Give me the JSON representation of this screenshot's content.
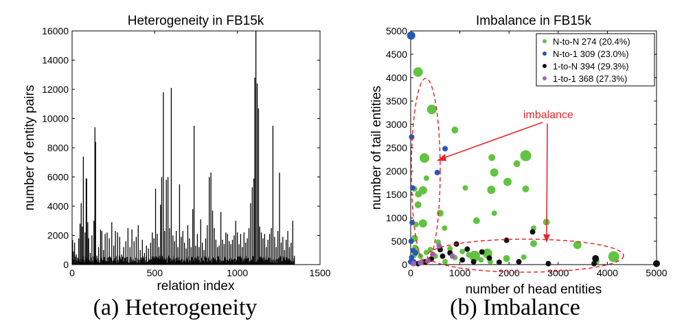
{
  "chart_data": [
    {
      "type": "bar",
      "title": "Heterogeneity in FB15k",
      "xlabel": "relation index",
      "ylabel": "number of entity pairs",
      "xlim": [
        0,
        1500
      ],
      "ylim": [
        0,
        16000
      ],
      "xticks": [
        "0",
        "500",
        "1000",
        "1500"
      ],
      "yticks": [
        "0",
        "2000",
        "4000",
        "6000",
        "8000",
        "10000",
        "12000",
        "14000",
        "16000"
      ],
      "caption": "(a) Heterogeneity",
      "spikes": [
        [
          3,
          1700
        ],
        [
          8,
          900
        ],
        [
          15,
          1500
        ],
        [
          25,
          700
        ],
        [
          40,
          1800
        ],
        [
          48,
          2800
        ],
        [
          55,
          4200
        ],
        [
          62,
          2600
        ],
        [
          68,
          7400
        ],
        [
          78,
          2200
        ],
        [
          85,
          5900
        ],
        [
          88,
          5900
        ],
        [
          95,
          2900
        ],
        [
          100,
          1800
        ],
        [
          110,
          800
        ],
        [
          120,
          2000
        ],
        [
          132,
          3000
        ],
        [
          138,
          9400
        ],
        [
          142,
          8400
        ],
        [
          150,
          600
        ],
        [
          160,
          1200
        ],
        [
          172,
          2400
        ],
        [
          180,
          2300
        ],
        [
          190,
          1000
        ],
        [
          200,
          2100
        ],
        [
          212,
          2200
        ],
        [
          225,
          1800
        ],
        [
          240,
          2900
        ],
        [
          252,
          1300
        ],
        [
          262,
          2300
        ],
        [
          275,
          2200
        ],
        [
          288,
          1900
        ],
        [
          300,
          700
        ],
        [
          312,
          1200
        ],
        [
          325,
          1600
        ],
        [
          338,
          2500
        ],
        [
          350,
          1200
        ],
        [
          362,
          2400
        ],
        [
          375,
          1600
        ],
        [
          388,
          1900
        ],
        [
          400,
          2700
        ],
        [
          412,
          1000
        ],
        [
          425,
          1700
        ],
        [
          438,
          800
        ],
        [
          450,
          1300
        ],
        [
          462,
          1100
        ],
        [
          475,
          1500
        ],
        [
          485,
          2200
        ],
        [
          495,
          1800
        ],
        [
          505,
          5200
        ],
        [
          515,
          2100
        ],
        [
          525,
          1200
        ],
        [
          535,
          4100
        ],
        [
          542,
          6000
        ],
        [
          552,
          11800
        ],
        [
          560,
          2300
        ],
        [
          570,
          5800
        ],
        [
          580,
          6000
        ],
        [
          590,
          2500
        ],
        [
          600,
          12100
        ],
        [
          610,
          2000
        ],
        [
          620,
          1600
        ],
        [
          630,
          2300
        ],
        [
          640,
          1200
        ],
        [
          650,
          5500
        ],
        [
          660,
          1900
        ],
        [
          670,
          2300
        ],
        [
          680,
          1500
        ],
        [
          690,
          1100
        ],
        [
          700,
          2700
        ],
        [
          710,
          1800
        ],
        [
          720,
          1200
        ],
        [
          730,
          3800
        ],
        [
          738,
          9500
        ],
        [
          748,
          1300
        ],
        [
          758,
          2100
        ],
        [
          768,
          1200
        ],
        [
          778,
          3100
        ],
        [
          788,
          1500
        ],
        [
          798,
          1000
        ],
        [
          808,
          1800
        ],
        [
          818,
          2700
        ],
        [
          830,
          6000
        ],
        [
          840,
          6300
        ],
        [
          850,
          3700
        ],
        [
          860,
          2500
        ],
        [
          870,
          1700
        ],
        [
          880,
          1200
        ],
        [
          890,
          1300
        ],
        [
          900,
          3600
        ],
        [
          910,
          1700
        ],
        [
          920,
          1400
        ],
        [
          930,
          2200
        ],
        [
          940,
          2100
        ],
        [
          950,
          1600
        ],
        [
          960,
          1400
        ],
        [
          970,
          1700
        ],
        [
          980,
          2000
        ],
        [
          990,
          3000
        ],
        [
          1000,
          2200
        ],
        [
          1010,
          1400
        ],
        [
          1020,
          2100
        ],
        [
          1030,
          1200
        ],
        [
          1040,
          2200
        ],
        [
          1050,
          1500
        ],
        [
          1060,
          1800
        ],
        [
          1070,
          2500
        ],
        [
          1080,
          4200
        ],
        [
          1090,
          5300
        ],
        [
          1100,
          5900
        ],
        [
          1105,
          12800
        ],
        [
          1112,
          16000
        ],
        [
          1120,
          12400
        ],
        [
          1128,
          10700
        ],
        [
          1135,
          2600
        ],
        [
          1145,
          2200
        ],
        [
          1155,
          1800
        ],
        [
          1165,
          2100
        ],
        [
          1175,
          1200
        ],
        [
          1185,
          1700
        ],
        [
          1195,
          2100
        ],
        [
          1205,
          2500
        ],
        [
          1215,
          9500
        ],
        [
          1225,
          1900
        ],
        [
          1235,
          1200
        ],
        [
          1245,
          2300
        ],
        [
          1255,
          6300
        ],
        [
          1265,
          1500
        ],
        [
          1275,
          1900
        ],
        [
          1285,
          1000
        ],
        [
          1295,
          1700
        ],
        [
          1305,
          2300
        ],
        [
          1315,
          1200
        ],
        [
          1325,
          1500
        ],
        [
          1335,
          3000
        ],
        [
          1345,
          600
        ]
      ]
    },
    {
      "type": "scatter",
      "title": "Imbalance in FB15k",
      "xlabel": "number of head entities",
      "ylabel": "number of tail entities",
      "xlim": [
        0,
        5000
      ],
      "ylim": [
        0,
        5000
      ],
      "xticks": [
        "0",
        "1000",
        "2000",
        "3000",
        "4000",
        "5000"
      ],
      "yticks": [
        "0",
        "500",
        "1000",
        "1500",
        "2000",
        "2500",
        "3000",
        "3500",
        "4000",
        "4500",
        "5000"
      ],
      "caption": "(b) Imbalance",
      "annotation": "imbalance",
      "series": [
        {
          "name": "N-to-N 274 (20.4%)",
          "color": "#62c341",
          "points": [
            [
              150,
              4120,
              7
            ],
            [
              430,
              3320,
              7
            ],
            [
              900,
              2880,
              5
            ],
            [
              280,
              2280,
              7
            ],
            [
              160,
              1510,
              5
            ],
            [
              80,
              1620,
              4
            ],
            [
              320,
              1850,
              4
            ],
            [
              150,
              1280,
              5
            ],
            [
              250,
              1590,
              6
            ],
            [
              250,
              880,
              6
            ],
            [
              1110,
              1640,
              4
            ],
            [
              1650,
              2290,
              5
            ],
            [
              1700,
              1970,
              6
            ],
            [
              1640,
              1600,
              6
            ],
            [
              1970,
              1770,
              6
            ],
            [
              2340,
              2330,
              8
            ],
            [
              2160,
              2160,
              5
            ],
            [
              2340,
              1620,
              5
            ],
            [
              2500,
              780,
              4
            ],
            [
              2760,
              910,
              5
            ],
            [
              1700,
              1100,
              4
            ],
            [
              1340,
              940,
              5
            ],
            [
              3390,
              420,
              6
            ],
            [
              2500,
              450,
              5
            ],
            [
              1300,
              180,
              8
            ],
            [
              1560,
              240,
              7
            ],
            [
              1950,
              130,
              5
            ],
            [
              2300,
              160,
              4
            ],
            [
              4130,
              170,
              8
            ],
            [
              3770,
              70,
              5
            ],
            [
              80,
              560,
              5
            ],
            [
              90,
              370,
              4
            ],
            [
              130,
              280,
              4
            ],
            [
              200,
              180,
              4
            ],
            [
              320,
              260,
              4
            ],
            [
              600,
              1100,
              5
            ],
            [
              690,
              780,
              4
            ],
            [
              800,
              340,
              4
            ],
            [
              1050,
              280,
              4
            ],
            [
              1180,
              210,
              4
            ],
            [
              1430,
              100,
              4
            ],
            [
              1620,
              60,
              4
            ],
            [
              560,
              480,
              4
            ],
            [
              400,
              320,
              4
            ],
            [
              900,
              150,
              4
            ],
            [
              700,
              60,
              4
            ],
            [
              240,
              70,
              4
            ],
            [
              110,
              860,
              4
            ],
            [
              70,
              200,
              4
            ],
            [
              500,
              180,
              4
            ]
          ]
        },
        {
          "name": "N-to-1 309 (23.0%)",
          "color": "#2657b5",
          "points": [
            [
              10,
              4900,
              6
            ],
            [
              20,
              2730,
              4
            ],
            [
              700,
              2480,
              4
            ],
            [
              540,
              1970,
              4
            ],
            [
              40,
              1640,
              4
            ],
            [
              30,
              900,
              4
            ],
            [
              10,
              500,
              4
            ],
            [
              50,
              300,
              4
            ],
            [
              20,
              150,
              4
            ],
            [
              100,
              250,
              4
            ],
            [
              0,
              60,
              4
            ],
            [
              60,
              60,
              4
            ]
          ]
        },
        {
          "name": "1-to-N 394 (29.3%)",
          "color": "#111111",
          "points": [
            [
              2480,
              700,
              4
            ],
            [
              1950,
              520,
              4
            ],
            [
              1450,
              270,
              4
            ],
            [
              1150,
              330,
              4
            ],
            [
              800,
              250,
              4
            ],
            [
              650,
              180,
              4
            ],
            [
              420,
              120,
              4
            ],
            [
              300,
              60,
              4
            ],
            [
              1050,
              100,
              4
            ],
            [
              2800,
              20,
              4
            ],
            [
              3760,
              130,
              5
            ],
            [
              3730,
              20,
              4
            ],
            [
              5000,
              20,
              5
            ],
            [
              2200,
              60,
              4
            ],
            [
              1600,
              140,
              4
            ],
            [
              930,
              440,
              4
            ],
            [
              600,
              320,
              4
            ],
            [
              1280,
              60,
              4
            ],
            [
              1800,
              50,
              4
            ],
            [
              150,
              20,
              4
            ]
          ]
        },
        {
          "name": "1-to-1 368 (27.3%)",
          "color": "#a064b8",
          "points": [
            [
              580,
              400,
              4
            ],
            [
              450,
              220,
              4
            ],
            [
              350,
              80,
              4
            ],
            [
              200,
              40,
              4
            ],
            [
              60,
              20,
              4
            ],
            [
              850,
              180,
              4
            ]
          ]
        }
      ]
    }
  ]
}
